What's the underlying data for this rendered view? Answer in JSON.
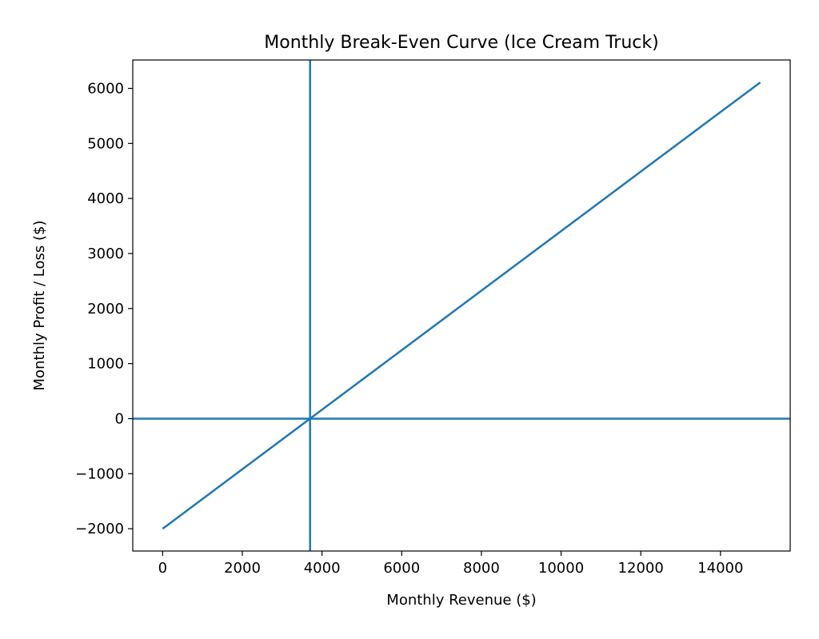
{
  "chart_data": {
    "type": "line",
    "title": "Monthly Break-Even Curve (Ice Cream Truck)",
    "xlabel": "Monthly Revenue ($)",
    "ylabel": "Monthly Profit / Loss ($)",
    "xlim": [
      -750,
      15750
    ],
    "ylim": [
      -2405,
      6516
    ],
    "xticks": [
      0,
      2000,
      4000,
      6000,
      8000,
      10000,
      12000,
      14000
    ],
    "yticks": [
      -2000,
      -1000,
      0,
      1000,
      2000,
      3000,
      4000,
      5000,
      6000
    ],
    "xtick_labels": [
      "0",
      "2000",
      "4000",
      "6000",
      "8000",
      "10000",
      "12000",
      "14000"
    ],
    "ytick_labels": [
      "−2000",
      "−1000",
      "0",
      "1000",
      "2000",
      "3000",
      "4000",
      "5000",
      "6000"
    ],
    "grid": false,
    "series": [
      {
        "x": [
          0,
          15000
        ],
        "y": [
          -2000,
          6110
        ],
        "color": "#1f77b4"
      }
    ],
    "reference_lines": [
      {
        "orientation": "horizontal",
        "value": 0,
        "color": "#1f77b4"
      },
      {
        "orientation": "vertical",
        "value": 3700,
        "color": "#1f77b4"
      }
    ]
  }
}
